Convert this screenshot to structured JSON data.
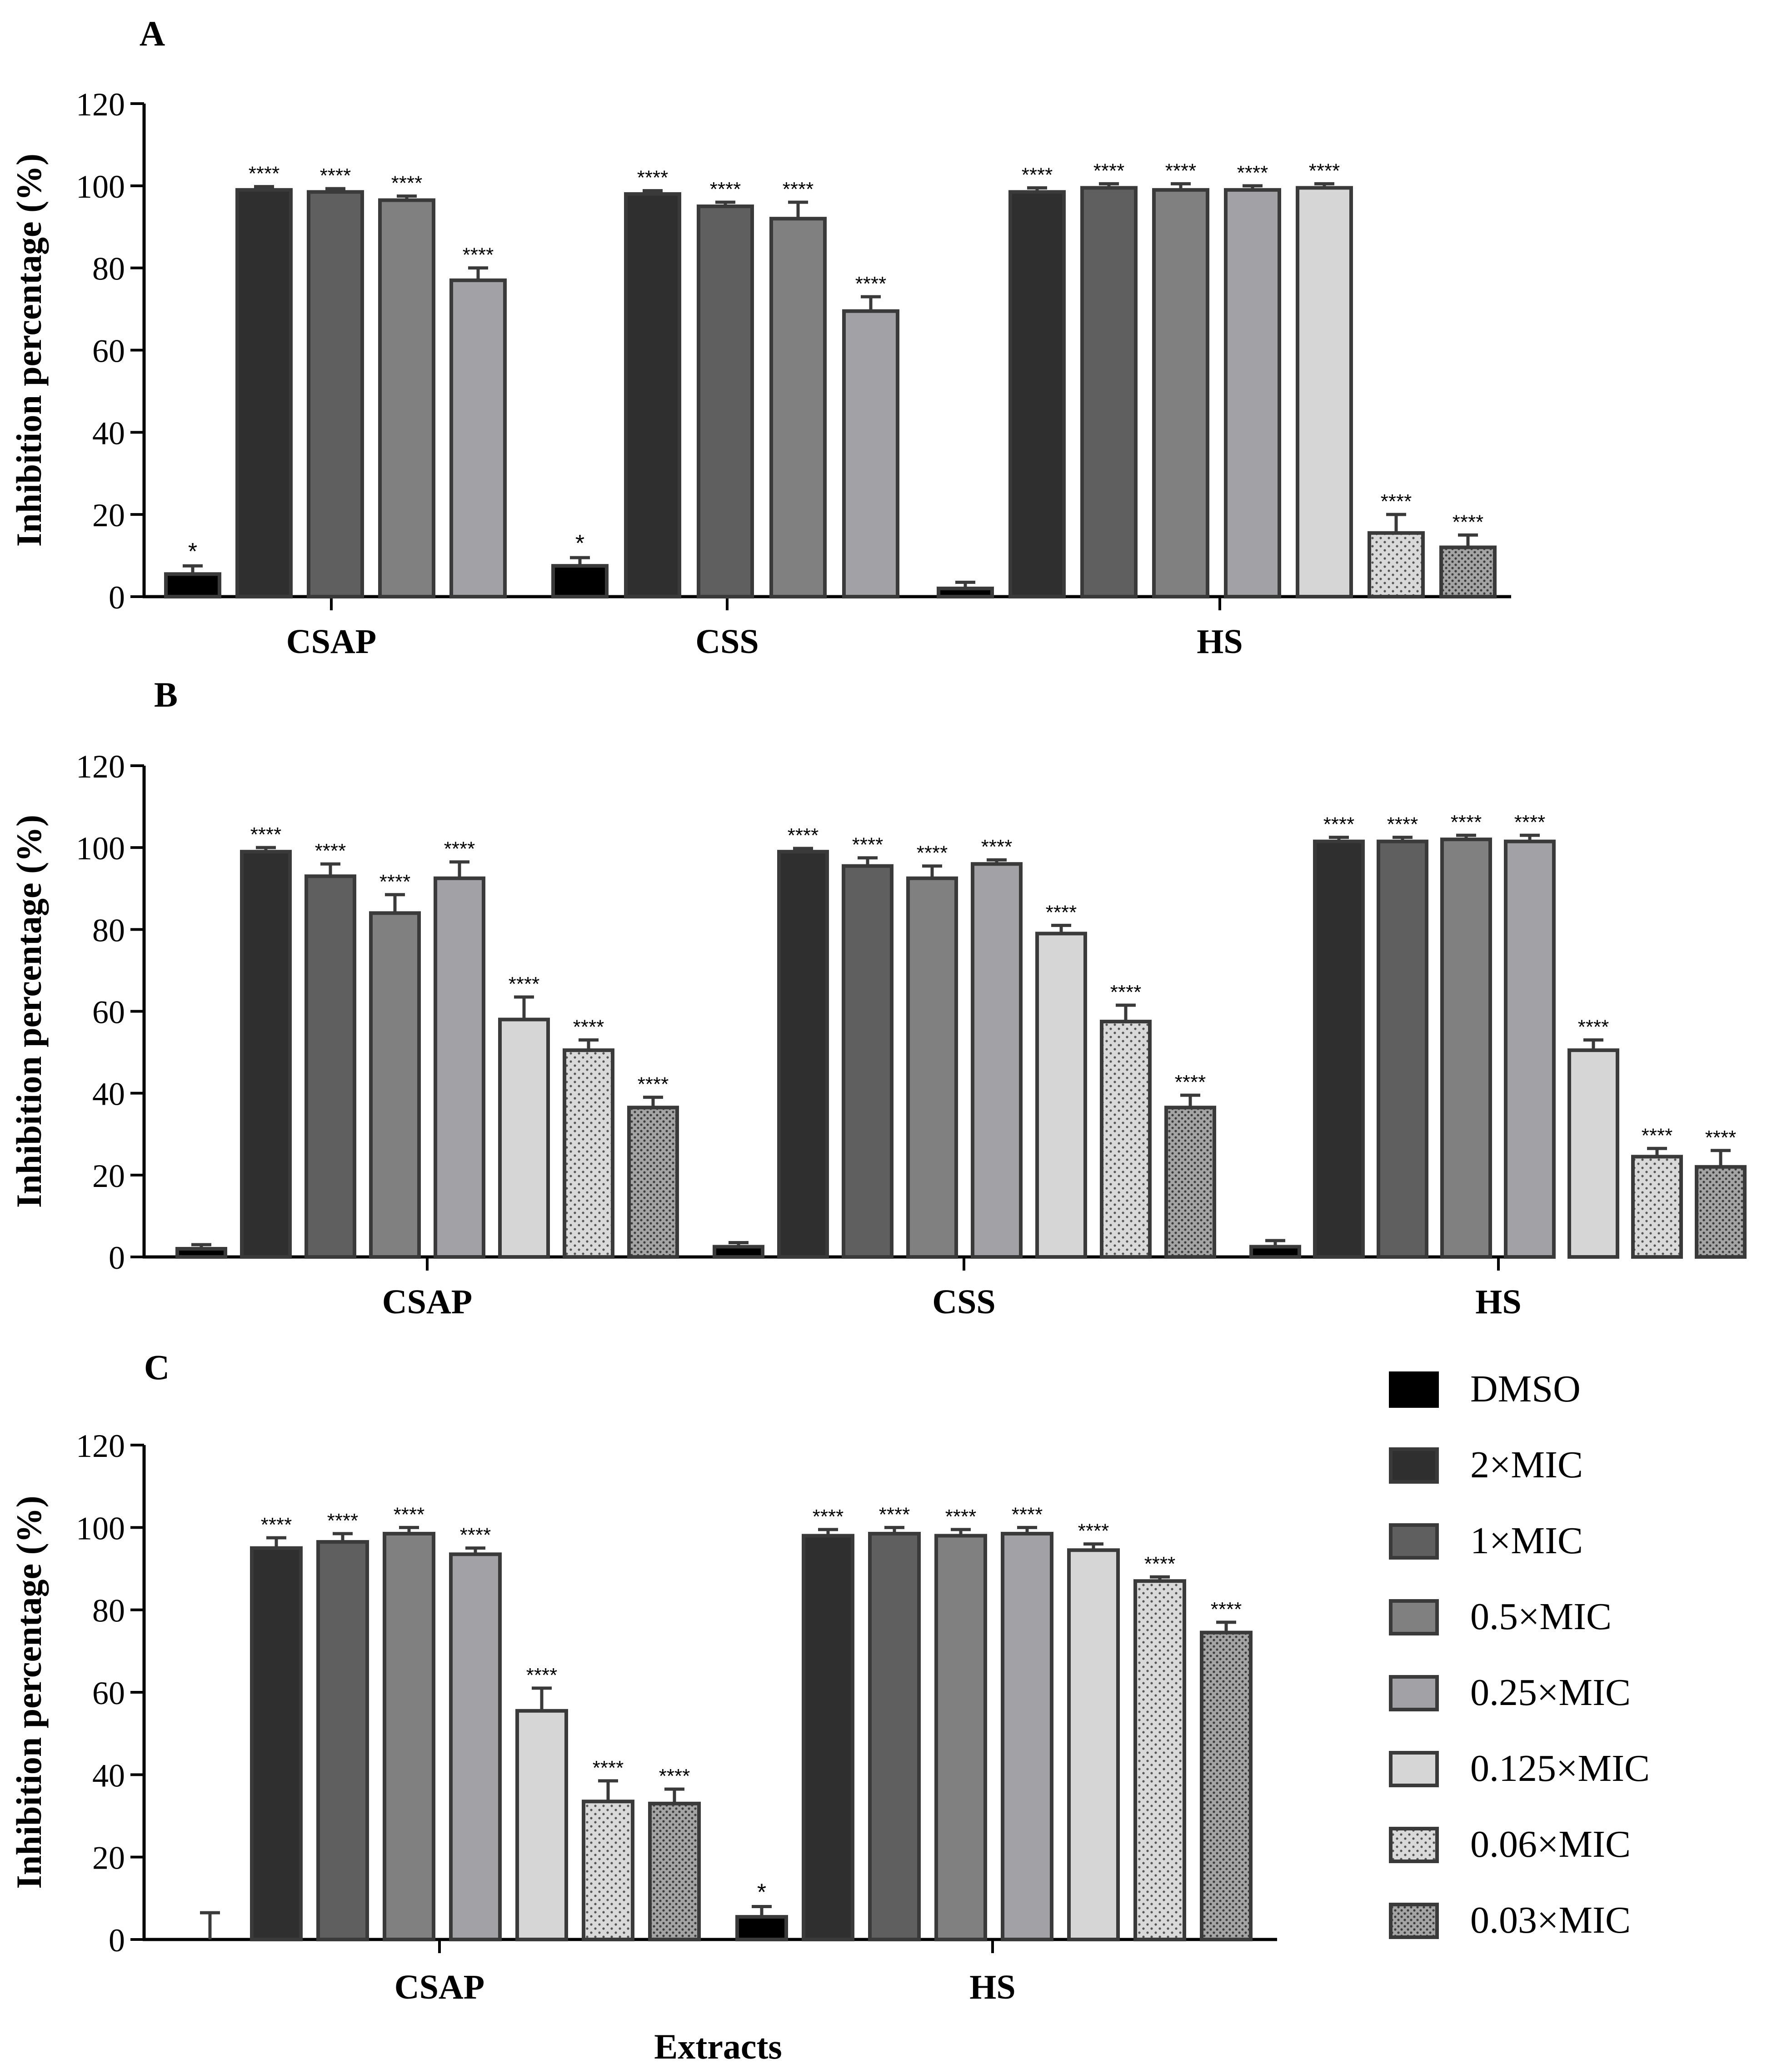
{
  "figure": {
    "x_axis_label": "Extracts",
    "y_axis_label": "Inhibition percentage (%)",
    "significance_marks": {
      "four_star": "****",
      "one_star": "*"
    }
  },
  "legend": {
    "items": [
      {
        "label": "DMSO",
        "fill": "#000000",
        "pattern": "solid"
      },
      {
        "label": "2×MIC",
        "fill": "#2f2f2f",
        "pattern": "solid"
      },
      {
        "label": "1×MIC",
        "fill": "#5f5f5f",
        "pattern": "solid"
      },
      {
        "label": "0.5×MIC",
        "fill": "#808080",
        "pattern": "solid"
      },
      {
        "label": "0.25×MIC",
        "fill": "#a2a2a6",
        "pattern": "solid"
      },
      {
        "label": "0.125×MIC",
        "fill": "#d6d6d6",
        "pattern": "solid"
      },
      {
        "label": "0.06×MIC",
        "fill": "#d9d9d9",
        "pattern": "dots-sparse"
      },
      {
        "label": "0.03×MIC",
        "fill": "#a4a4a4",
        "pattern": "dots-dense"
      }
    ]
  },
  "colors": {
    "outline": "#3a3a3a",
    "axis": "#000000",
    "text": "#000000"
  },
  "chart_data": [
    {
      "panel": "A",
      "type": "bar",
      "ylabel": "Inhibition percentage (%)",
      "ylim": [
        0,
        120
      ],
      "yticks": [
        0,
        20,
        40,
        60,
        80,
        100,
        120
      ],
      "categories": [
        "CSAP",
        "CSS",
        "HS"
      ],
      "groups": [
        {
          "category": "CSAP",
          "bars": [
            {
              "series": "DMSO",
              "value": 5.5,
              "error": 2,
              "sig": "*"
            },
            {
              "series": "2×MIC",
              "value": 99,
              "error": 0.8,
              "sig": "****"
            },
            {
              "series": "1×MIC",
              "value": 98.5,
              "error": 0.8,
              "sig": "****"
            },
            {
              "series": "0.5×MIC",
              "value": 96.5,
              "error": 1,
              "sig": "****"
            },
            {
              "series": "0.25×MIC",
              "value": 77,
              "error": 3,
              "sig": "****"
            }
          ]
        },
        {
          "category": "CSS",
          "bars": [
            {
              "series": "DMSO",
              "value": 7.5,
              "error": 2,
              "sig": "*"
            },
            {
              "series": "2×MIC",
              "value": 98,
              "error": 0.8,
              "sig": "****"
            },
            {
              "series": "1×MIC",
              "value": 95,
              "error": 1,
              "sig": "****"
            },
            {
              "series": "0.5×MIC",
              "value": 92,
              "error": 4,
              "sig": "****"
            },
            {
              "series": "0.25×MIC",
              "value": 69.5,
              "error": 3.5,
              "sig": "****"
            }
          ]
        },
        {
          "category": "HS",
          "bars": [
            {
              "series": "DMSO",
              "value": 2,
              "error": 1.5,
              "sig": ""
            },
            {
              "series": "2×MIC",
              "value": 98.5,
              "error": 1,
              "sig": "****"
            },
            {
              "series": "1×MIC",
              "value": 99.5,
              "error": 1,
              "sig": "****"
            },
            {
              "series": "0.5×MIC",
              "value": 99,
              "error": 1.5,
              "sig": "****"
            },
            {
              "series": "0.25×MIC",
              "value": 99,
              "error": 1,
              "sig": "****"
            },
            {
              "series": "0.125×MIC",
              "value": 99.5,
              "error": 1,
              "sig": "****"
            },
            {
              "series": "0.06×MIC",
              "value": 15.5,
              "error": 4.5,
              "sig": "****"
            },
            {
              "series": "0.03×MIC",
              "value": 12,
              "error": 3,
              "sig": "****"
            }
          ]
        }
      ]
    },
    {
      "panel": "B",
      "type": "bar",
      "ylabel": "Inhibition percentage (%)",
      "ylim": [
        0,
        120
      ],
      "yticks": [
        0,
        20,
        40,
        60,
        80,
        100,
        120
      ],
      "categories": [
        "CSAP",
        "CSS",
        "HS"
      ],
      "groups": [
        {
          "category": "CSAP",
          "bars": [
            {
              "series": "DMSO",
              "value": 2,
              "error": 1,
              "sig": ""
            },
            {
              "series": "2×MIC",
              "value": 99,
              "error": 1,
              "sig": "****"
            },
            {
              "series": "1×MIC",
              "value": 93,
              "error": 3,
              "sig": "****"
            },
            {
              "series": "0.5×MIC",
              "value": 84,
              "error": 4.5,
              "sig": "****"
            },
            {
              "series": "0.25×MIC",
              "value": 92.5,
              "error": 4,
              "sig": "****"
            },
            {
              "series": "0.125×MIC",
              "value": 58,
              "error": 5.5,
              "sig": "****"
            },
            {
              "series": "0.06×MIC",
              "value": 50.5,
              "error": 2.5,
              "sig": "****"
            },
            {
              "series": "0.03×MIC",
              "value": 36.5,
              "error": 2.5,
              "sig": "****"
            }
          ]
        },
        {
          "category": "CSS",
          "bars": [
            {
              "series": "DMSO",
              "value": 2.5,
              "error": 1,
              "sig": ""
            },
            {
              "series": "2×MIC",
              "value": 99,
              "error": 0.8,
              "sig": "****"
            },
            {
              "series": "1×MIC",
              "value": 95.5,
              "error": 2,
              "sig": "****"
            },
            {
              "series": "0.5×MIC",
              "value": 92.5,
              "error": 3,
              "sig": "****"
            },
            {
              "series": "0.25×MIC",
              "value": 96,
              "error": 1,
              "sig": "****"
            },
            {
              "series": "0.125×MIC",
              "value": 79,
              "error": 2,
              "sig": "****"
            },
            {
              "series": "0.06×MIC",
              "value": 57.5,
              "error": 4,
              "sig": "****"
            },
            {
              "series": "0.03×MIC",
              "value": 36.5,
              "error": 3,
              "sig": "****"
            }
          ]
        },
        {
          "category": "HS",
          "bars": [
            {
              "series": "DMSO",
              "value": 2.5,
              "error": 1.5,
              "sig": ""
            },
            {
              "series": "2×MIC",
              "value": 101.5,
              "error": 1,
              "sig": "****"
            },
            {
              "series": "1×MIC",
              "value": 101.5,
              "error": 1,
              "sig": "****"
            },
            {
              "series": "0.5×MIC",
              "value": 102,
              "error": 1,
              "sig": "****"
            },
            {
              "series": "0.25×MIC",
              "value": 101.5,
              "error": 1.5,
              "sig": "****"
            },
            {
              "series": "0.125×MIC",
              "value": 50.5,
              "error": 2.5,
              "sig": "****"
            },
            {
              "series": "0.06×MIC",
              "value": 24.5,
              "error": 2,
              "sig": "****"
            },
            {
              "series": "0.03×MIC",
              "value": 22,
              "error": 4,
              "sig": "****"
            }
          ]
        }
      ]
    },
    {
      "panel": "C",
      "type": "bar",
      "ylabel": "Inhibition percentage (%)",
      "xlabel": "Extracts",
      "ylim": [
        0,
        120
      ],
      "yticks": [
        0,
        20,
        40,
        60,
        80,
        100,
        120
      ],
      "categories": [
        "CSAP",
        "HS"
      ],
      "groups": [
        {
          "category": "CSAP",
          "bars": [
            {
              "series": "DMSO",
              "value": 0,
              "error": 6.5,
              "sig": ""
            },
            {
              "series": "2×MIC",
              "value": 95,
              "error": 2.5,
              "sig": "****"
            },
            {
              "series": "1×MIC",
              "value": 96.5,
              "error": 2,
              "sig": "****"
            },
            {
              "series": "0.5×MIC",
              "value": 98.5,
              "error": 1.5,
              "sig": "****"
            },
            {
              "series": "0.25×MIC",
              "value": 93.5,
              "error": 1.5,
              "sig": "****"
            },
            {
              "series": "0.125×MIC",
              "value": 55.5,
              "error": 5.5,
              "sig": "****"
            },
            {
              "series": "0.06×MIC",
              "value": 33.5,
              "error": 5,
              "sig": "****"
            },
            {
              "series": "0.03×MIC",
              "value": 33,
              "error": 3.5,
              "sig": "****"
            }
          ]
        },
        {
          "category": "HS",
          "bars": [
            {
              "series": "DMSO",
              "value": 5.5,
              "error": 2.5,
              "sig": "*"
            },
            {
              "series": "2×MIC",
              "value": 98,
              "error": 1.5,
              "sig": "****"
            },
            {
              "series": "1×MIC",
              "value": 98.5,
              "error": 1.5,
              "sig": "****"
            },
            {
              "series": "0.5×MIC",
              "value": 98,
              "error": 1.5,
              "sig": "****"
            },
            {
              "series": "0.25×MIC",
              "value": 98.5,
              "error": 1.5,
              "sig": "****"
            },
            {
              "series": "0.125×MIC",
              "value": 94.5,
              "error": 1.5,
              "sig": "****"
            },
            {
              "series": "0.06×MIC",
              "value": 87,
              "error": 1,
              "sig": "****"
            },
            {
              "series": "0.03×MIC",
              "value": 74.5,
              "error": 2.5,
              "sig": "****"
            }
          ]
        }
      ]
    }
  ]
}
